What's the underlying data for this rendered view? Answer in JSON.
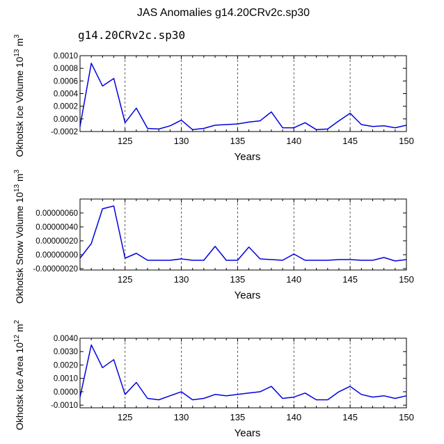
{
  "title": "JAS Anomalies g14.20CRv2c.sp30",
  "legend_label": "g14.20CRv2c.sp30",
  "line_color": "#0000dd",
  "chart_data": [
    {
      "type": "line",
      "ylabel": "Okhotsk Ice Volume 10",
      "ylabel_exp": "13",
      "ylabel_unit": " m",
      "ylabel_unit_exp": "3",
      "xlabel": "Years",
      "xlim": [
        121,
        150
      ],
      "ylim": [
        -0.0002,
        0.001
      ],
      "xticks": [
        125,
        130,
        135,
        140,
        145,
        150
      ],
      "yticks": [
        -0.0002,
        0.0,
        0.0002,
        0.0004,
        0.0006,
        0.0008,
        0.001
      ],
      "ytick_labels": [
        "-0.0002",
        "0.0000",
        "0.0002",
        "0.0004",
        "0.0006",
        "0.0008",
        "0.0010"
      ],
      "x": [
        121,
        122,
        123,
        124,
        125,
        126,
        127,
        128,
        129,
        130,
        131,
        132,
        133,
        134,
        135,
        136,
        137,
        138,
        139,
        140,
        141,
        142,
        143,
        144,
        145,
        146,
        147,
        148,
        149,
        150
      ],
      "values": [
        -0.00012,
        0.00088,
        0.00052,
        0.00064,
        -6e-05,
        0.00017,
        -0.00015,
        -0.00016,
        -0.00011,
        -2e-05,
        -0.00017,
        -0.00015,
        -0.0001,
        -9e-05,
        -8e-05,
        -5e-05,
        -3e-05,
        0.00011,
        -0.00014,
        -0.00014,
        -6e-05,
        -0.00017,
        -0.00016,
        -3e-05,
        9e-05,
        -9e-05,
        -0.00012,
        -0.00011,
        -0.00014,
        -0.0001
      ]
    },
    {
      "type": "line",
      "ylabel": "Okhotsk Snow Volume 10",
      "ylabel_exp": "13",
      "ylabel_unit": " m",
      "ylabel_unit_exp": "3",
      "xlabel": "Years",
      "xlim": [
        121,
        150
      ],
      "ylim": [
        -2.2e-07,
        8e-07
      ],
      "xticks": [
        125,
        130,
        135,
        140,
        145,
        150
      ],
      "yticks": [
        -2e-07,
        0.0,
        2e-07,
        4e-07,
        6e-07
      ],
      "ytick_labels": [
        "-0.00000020",
        "0.00000000",
        "0.00000020",
        "0.00000040",
        "0.00000060"
      ],
      "x": [
        121,
        122,
        123,
        124,
        125,
        126,
        127,
        128,
        129,
        130,
        131,
        132,
        133,
        134,
        135,
        136,
        137,
        138,
        139,
        140,
        141,
        142,
        143,
        144,
        145,
        146,
        147,
        148,
        149,
        150
      ],
      "values": [
        -5e-08,
        1.6e-07,
        6.6e-07,
        7e-07,
        -5e-08,
        2e-08,
        -8e-08,
        -8e-08,
        -8e-08,
        -6e-08,
        -8e-08,
        -8e-08,
        1.2e-07,
        -8e-08,
        -8e-08,
        1.1e-07,
        -6e-08,
        -7e-08,
        -8e-08,
        1e-08,
        -8e-08,
        -8e-08,
        -8e-08,
        -7e-08,
        -7e-08,
        -8e-08,
        -8e-08,
        -4e-08,
        -9e-08,
        -7e-08
      ]
    },
    {
      "type": "line",
      "ylabel": "Okhotsk Ice Area 10",
      "ylabel_exp": "12",
      "ylabel_unit": " m",
      "ylabel_unit_exp": "2",
      "xlabel": "Years",
      "xlim": [
        121,
        150
      ],
      "ylim": [
        -0.0012,
        0.004
      ],
      "xticks": [
        125,
        130,
        135,
        140,
        145,
        150
      ],
      "yticks": [
        -0.001,
        0.0,
        0.001,
        0.002,
        0.003,
        0.004
      ],
      "ytick_labels": [
        "-0.0010",
        "0.0000",
        "0.0010",
        "0.0020",
        "0.0030",
        "0.0040"
      ],
      "x": [
        121,
        122,
        123,
        124,
        125,
        126,
        127,
        128,
        129,
        130,
        131,
        132,
        133,
        134,
        135,
        136,
        137,
        138,
        139,
        140,
        141,
        142,
        143,
        144,
        145,
        146,
        147,
        148,
        149,
        150
      ],
      "values": [
        -0.0004,
        0.0035,
        0.0018,
        0.0024,
        -0.0002,
        0.0007,
        -0.0005,
        -0.0006,
        -0.0003,
        0.0,
        -0.0006,
        -0.0005,
        -0.0002,
        -0.0003,
        -0.0002,
        -0.0001,
        0.0,
        0.0004,
        -0.0005,
        -0.0004,
        -0.0001,
        -0.0006,
        -0.0006,
        0.0,
        0.0004,
        -0.0002,
        -0.0004,
        -0.0003,
        -0.0005,
        -0.0003
      ]
    }
  ]
}
